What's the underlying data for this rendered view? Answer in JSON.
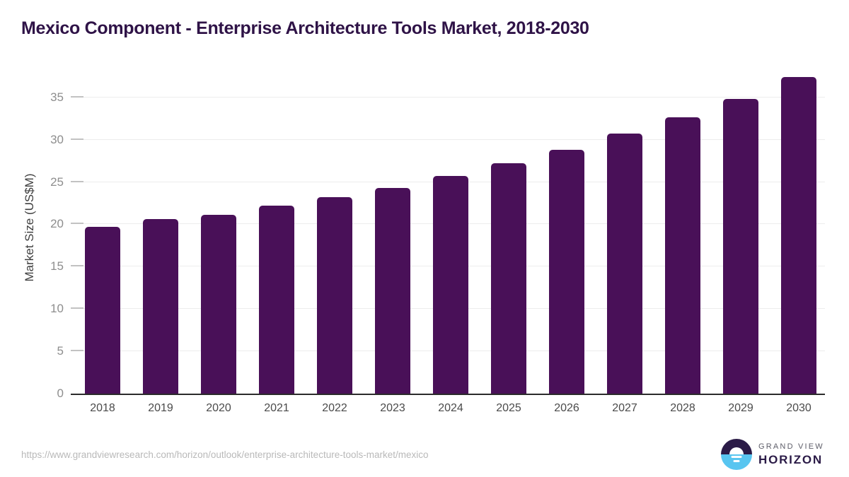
{
  "title": "Mexico Component - Enterprise Architecture Tools Market, 2018-2030",
  "chart_data": {
    "type": "bar",
    "title": "Mexico Component - Enterprise Architecture Tools Market, 2018-2030",
    "categories": [
      "2018",
      "2019",
      "2020",
      "2021",
      "2022",
      "2023",
      "2024",
      "2025",
      "2026",
      "2027",
      "2028",
      "2029",
      "2030"
    ],
    "values": [
      19.7,
      20.6,
      21.1,
      22.2,
      23.2,
      24.3,
      25.7,
      27.2,
      28.8,
      30.7,
      32.6,
      34.8,
      37.4
    ],
    "xlabel": "",
    "ylabel": "Market Size (US$M)",
    "yticks": [
      0,
      5,
      10,
      15,
      20,
      25,
      30,
      35
    ],
    "ylim": [
      0,
      38.3
    ],
    "grid": "horizontal",
    "legend": "none",
    "bar_color": "#491058"
  },
  "footer": {
    "source_url": "https://www.grandviewresearch.com/horizon/outlook/enterprise-architecture-tools-market/mexico",
    "logo": {
      "brand_top": "GRAND VIEW",
      "brand_bottom": "HORIZON",
      "mark": "sun-over-horizon-icon"
    }
  },
  "colors": {
    "title": "#2f1347",
    "bar": "#491058",
    "grid": "#ededed",
    "tick": "#c2c2c2",
    "axis_line": "#2b2b2b",
    "x_label": "#4a4a4a",
    "y_label": "#8e8e8e",
    "y_title": "#3f3f3f",
    "url": "#b9b9b9",
    "logo_navy": "#2b1b47",
    "logo_blue": "#58c5f0",
    "logo_gray_text": "#5d5d68"
  }
}
